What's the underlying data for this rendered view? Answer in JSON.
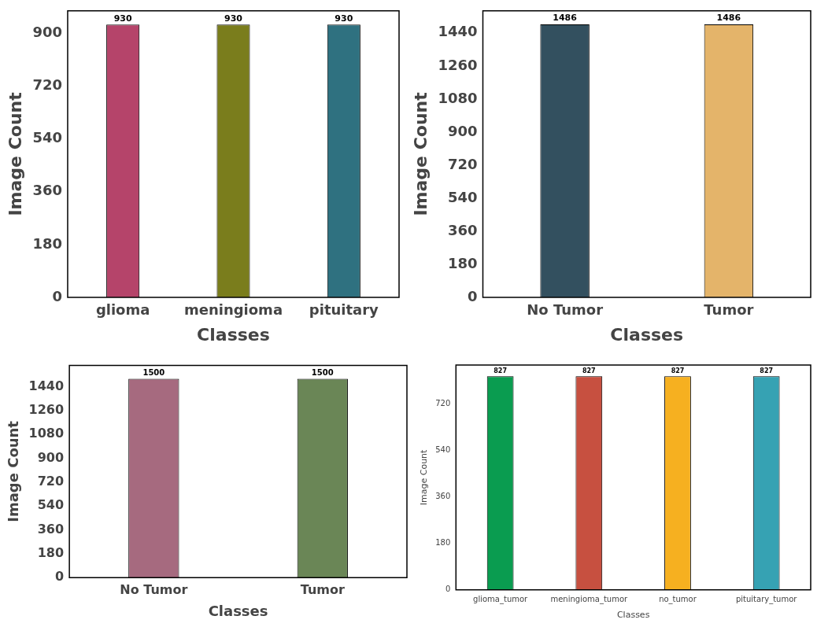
{
  "chart_data": [
    {
      "type": "bar",
      "categories": [
        "glioma",
        "meningioma",
        "pituitary"
      ],
      "values": [
        930,
        930,
        930
      ],
      "colors": [
        "#b5446a",
        "#7a7d1c",
        "#2f7180"
      ],
      "xlabel": "Classes",
      "ylabel": "Image Count",
      "ylim": [
        0,
        977
      ],
      "yticks": [
        0,
        180,
        360,
        540,
        720,
        900
      ],
      "data_labels": true,
      "grid": false,
      "legend": false
    },
    {
      "type": "bar",
      "categories": [
        "No Tumor",
        "Tumor"
      ],
      "values": [
        1486,
        1486
      ],
      "colors": [
        "#33505f",
        "#e4b46a"
      ],
      "xlabel": "Classes",
      "ylabel": "Image Count",
      "ylim": [
        0,
        1560
      ],
      "yticks": [
        0,
        180,
        360,
        540,
        720,
        900,
        1080,
        1260,
        1440
      ],
      "data_labels": true,
      "grid": false,
      "legend": false
    },
    {
      "type": "bar",
      "categories": [
        "No Tumor",
        "Tumor"
      ],
      "values": [
        1500,
        1500
      ],
      "colors": [
        "#a66a7f",
        "#6a8656"
      ],
      "xlabel": "Classes",
      "ylabel": "Image Count",
      "ylim": [
        0,
        1600
      ],
      "yticks": [
        0,
        180,
        360,
        540,
        720,
        900,
        1080,
        1260,
        1440
      ],
      "data_labels": true,
      "grid": false,
      "legend": false
    },
    {
      "type": "bar",
      "categories": [
        "glioma_tumor",
        "meningioma_tumor",
        "no_tumor",
        "pituitary_tumor"
      ],
      "values": [
        827,
        827,
        827,
        827
      ],
      "colors": [
        "#0a9c50",
        "#c75040",
        "#f6b020",
        "#36a2b3"
      ],
      "xlabel": "Classes",
      "ylabel": "Image Count",
      "ylim": [
        0,
        870
      ],
      "yticks": [
        0,
        180,
        360,
        540,
        720
      ],
      "data_labels": true,
      "grid": false,
      "legend": false
    }
  ]
}
